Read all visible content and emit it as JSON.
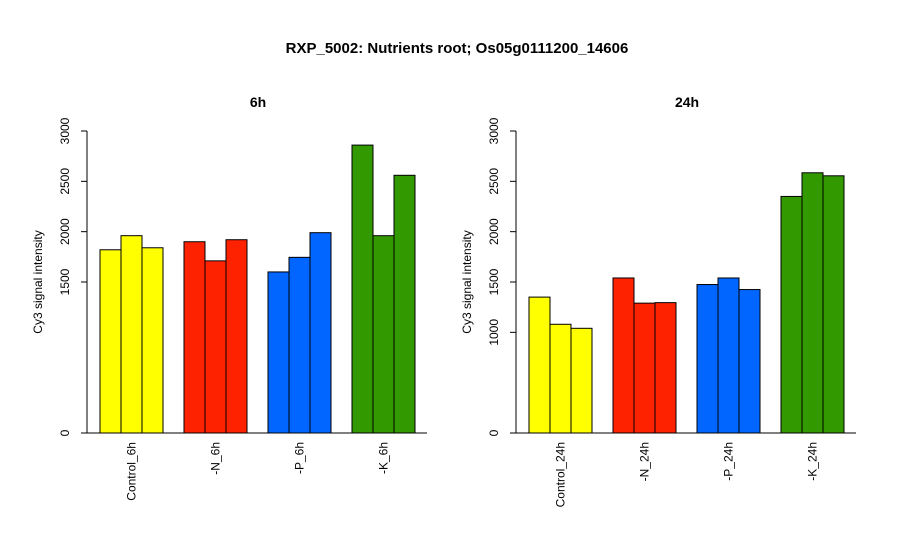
{
  "title": "RXP_5002: Nutrients root; Os05g0111200_14606",
  "chart_data": [
    {
      "type": "bar",
      "title": "6h",
      "ylabel": "Cy3 signal intensity",
      "ylim": [
        0,
        3000
      ],
      "yticks": [
        0,
        1500,
        2000,
        2500,
        3000
      ],
      "groups": [
        {
          "label": "Control_6h",
          "color": "#ffff00",
          "values": [
            1820,
            1960,
            1840
          ]
        },
        {
          "label": "-N_6h",
          "color": "#ff2200",
          "values": [
            1900,
            1710,
            1920
          ]
        },
        {
          "label": "-P_6h",
          "color": "#0066ff",
          "values": [
            1600,
            1745,
            1990
          ]
        },
        {
          "label": "-K_6h",
          "color": "#339900",
          "values": [
            2860,
            1960,
            2560
          ]
        }
      ]
    },
    {
      "type": "bar",
      "title": "24h",
      "ylabel": "Cy3 signal intensity",
      "ylim": [
        0,
        3000
      ],
      "yticks": [
        0,
        1000,
        1500,
        2000,
        2500,
        3000
      ],
      "groups": [
        {
          "label": "Control_24h",
          "color": "#ffff00",
          "values": [
            1350,
            1080,
            1040
          ]
        },
        {
          "label": "-N_24h",
          "color": "#ff2200",
          "values": [
            1540,
            1290,
            1295
          ]
        },
        {
          "label": "-P_24h",
          "color": "#0066ff",
          "values": [
            1475,
            1540,
            1425
          ]
        },
        {
          "label": "-K_24h",
          "color": "#339900",
          "values": [
            2350,
            2585,
            2555
          ]
        }
      ]
    }
  ]
}
